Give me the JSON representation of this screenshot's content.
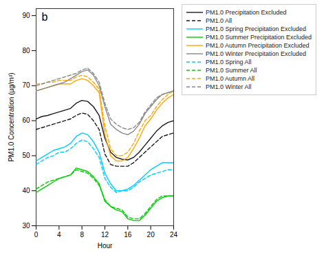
{
  "chart_data": {
    "type": "line",
    "annotation": "b",
    "xlabel": "Hour",
    "ylabel": "PM1.0 Concentration (μg/m³)",
    "xlim": [
      0,
      24
    ],
    "ylim": [
      30,
      92
    ],
    "xticks": [
      0,
      4,
      8,
      12,
      16,
      20,
      24
    ],
    "yticks": [
      30,
      40,
      50,
      60,
      70,
      80,
      90
    ],
    "grid": false,
    "legend": "upper right",
    "x": [
      0,
      1,
      2,
      3,
      4,
      5,
      6,
      7,
      8,
      9,
      10,
      11,
      12,
      13,
      14,
      15,
      16,
      17,
      18,
      19,
      20,
      21,
      22,
      23,
      24
    ],
    "series": [
      {
        "name": "PM1.0 Precipitation Excluded",
        "color": "#1a1a1a",
        "line_style": "solid",
        "values": [
          60.5,
          61.2,
          61.5,
          62.0,
          62.5,
          63.0,
          63.5,
          65.0,
          65.8,
          65.5,
          64.0,
          61.5,
          55.0,
          51.0,
          49.5,
          49.0,
          48.8,
          49.5,
          51.0,
          53.0,
          55.0,
          57.0,
          58.5,
          59.5,
          60.0
        ]
      },
      {
        "name": "PM1.0 All",
        "color": "#1a1a1a",
        "line_style": "dashed",
        "values": [
          57.5,
          58.0,
          58.5,
          59.0,
          59.5,
          60.0,
          60.5,
          61.5,
          62.2,
          61.8,
          60.0,
          57.5,
          50.5,
          47.5,
          47.0,
          47.0,
          47.0,
          48.0,
          49.5,
          51.0,
          52.5,
          54.0,
          55.5,
          56.0,
          56.5
        ]
      },
      {
        "name": "PM1.0 Spring Precipitation Excluded",
        "color": "#00CCFF",
        "line_style": "solid",
        "values": [
          48.5,
          49.5,
          50.5,
          51.5,
          52.0,
          52.5,
          53.5,
          55.5,
          56.5,
          56.0,
          54.0,
          51.0,
          45.0,
          42.0,
          40.0,
          40.0,
          40.5,
          41.5,
          43.0,
          44.5,
          46.0,
          47.0,
          48.0,
          48.0,
          48.0
        ]
      },
      {
        "name": "PM1.0 Summer Precipitation Excluded",
        "color": "#00CC00",
        "line_style": "solid",
        "values": [
          39.5,
          40.5,
          41.5,
          42.5,
          43.5,
          44.0,
          44.5,
          46.5,
          46.0,
          45.5,
          44.0,
          42.0,
          37.0,
          35.5,
          34.5,
          34.0,
          32.0,
          31.5,
          31.5,
          33.0,
          35.0,
          37.0,
          38.0,
          38.5,
          38.5
        ]
      },
      {
        "name": "PM1.0 Autumn Precipitation Excluded",
        "color": "#FFA500",
        "line_style": "solid",
        "values": [
          68.5,
          69.0,
          69.5,
          70.0,
          70.5,
          70.5,
          70.5,
          71.5,
          72.0,
          71.5,
          70.0,
          68.0,
          56.0,
          50.0,
          48.5,
          48.5,
          49.5,
          52.0,
          55.0,
          58.5,
          60.5,
          63.0,
          65.0,
          66.5,
          67.5
        ]
      },
      {
        "name": "PM1.0 Winter Precipitation Excluded",
        "color": "#888888",
        "line_style": "solid",
        "values": [
          68.5,
          69.0,
          69.5,
          70.0,
          70.5,
          71.0,
          72.0,
          73.0,
          74.0,
          74.5,
          73.0,
          70.0,
          64.0,
          59.0,
          57.5,
          56.5,
          56.0,
          57.0,
          59.0,
          62.0,
          64.0,
          66.0,
          67.5,
          68.0,
          68.5
        ]
      },
      {
        "name": "PM1.0 Spring All",
        "color": "#00CCFF",
        "line_style": "dashed",
        "values": [
          47.5,
          48.5,
          49.5,
          50.0,
          51.0,
          51.0,
          52.0,
          53.5,
          54.5,
          54.0,
          52.0,
          49.5,
          43.5,
          41.0,
          39.5,
          40.0,
          40.0,
          41.0,
          42.5,
          43.5,
          44.5,
          45.0,
          45.5,
          46.0,
          46.0
        ]
      },
      {
        "name": "PM1.0 Summer All",
        "color": "#00CC00",
        "line_style": "dashed",
        "values": [
          40.5,
          41.5,
          42.5,
          43.0,
          43.5,
          44.0,
          44.5,
          46.0,
          45.5,
          45.0,
          43.5,
          41.5,
          37.5,
          35.5,
          35.0,
          34.5,
          32.5,
          32.0,
          32.0,
          33.5,
          35.5,
          37.5,
          38.5,
          38.5,
          38.5
        ]
      },
      {
        "name": "PM1.0 Autumn All",
        "color": "#FFA500",
        "line_style": "dashed",
        "values": [
          70.5,
          70.5,
          71.0,
          71.0,
          71.5,
          71.5,
          71.5,
          72.5,
          73.0,
          72.5,
          71.0,
          69.0,
          58.5,
          52.0,
          50.0,
          50.0,
          51.0,
          53.5,
          57.0,
          60.0,
          61.5,
          64.0,
          66.0,
          67.5,
          68.5
        ]
      },
      {
        "name": "PM1.0 Winter All",
        "color": "#888888",
        "line_style": "dashed",
        "values": [
          70.0,
          70.5,
          71.0,
          71.5,
          72.0,
          72.5,
          73.0,
          73.5,
          74.5,
          75.0,
          73.5,
          71.0,
          65.0,
          60.5,
          59.0,
          58.0,
          57.5,
          58.0,
          59.5,
          62.5,
          64.5,
          66.5,
          67.5,
          68.0,
          68.5
        ]
      }
    ]
  }
}
